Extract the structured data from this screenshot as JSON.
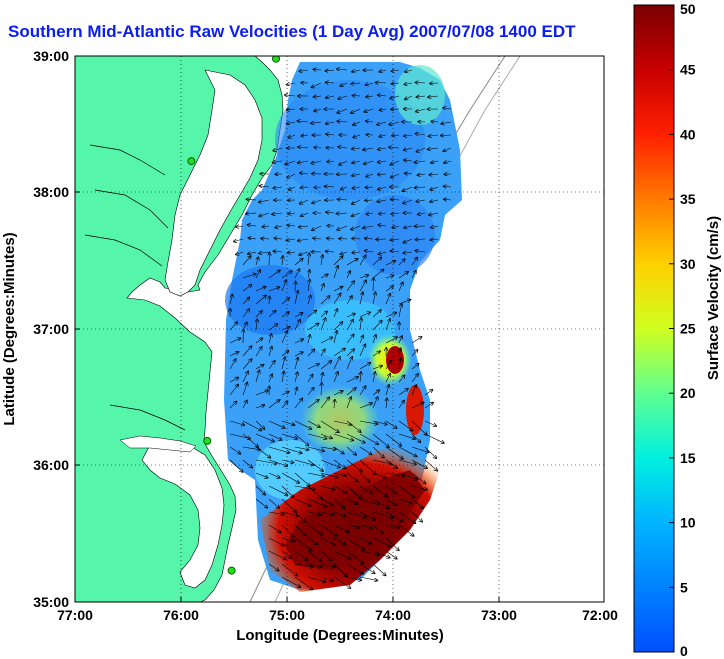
{
  "title": "Southern Mid-Atlantic Raw Velocities (1 Day Avg) 2007/07/08 1400 EDT",
  "x_axis": {
    "label": "Longitude (Degrees:Minutes)",
    "ticks": [
      "77:00",
      "76:00",
      "75:00",
      "74:00",
      "73:00",
      "72:00"
    ]
  },
  "y_axis": {
    "label": "Latitude (Degrees:Minutes)",
    "ticks": [
      "35:00",
      "36:00",
      "37:00",
      "38:00",
      "39:00"
    ]
  },
  "colorbar": {
    "label": "Surface Velocity (cm/s)",
    "min": 0,
    "max": 50,
    "ticks": [
      "0",
      "5",
      "10",
      "15",
      "20",
      "25",
      "30",
      "35",
      "40",
      "45",
      "50"
    ]
  },
  "map": {
    "lon_range": [
      -77,
      -72
    ],
    "lat_range": [
      35,
      39
    ],
    "land_color": "#55f5aa",
    "water_color": "#ffffff",
    "grid": "dotted",
    "station_markers": [
      {
        "lon": -75.1,
        "lat": 38.98
      },
      {
        "lon": -75.9,
        "lat": 38.23
      },
      {
        "lon": -75.75,
        "lat": 36.18
      },
      {
        "lon": -75.52,
        "lat": 35.23
      }
    ]
  }
}
